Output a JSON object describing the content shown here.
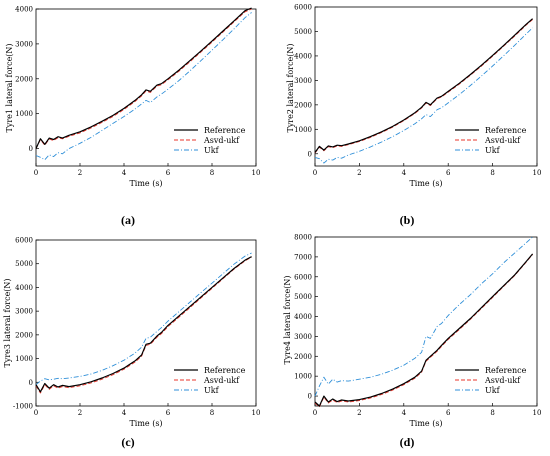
{
  "series_styles": {
    "Reference": {
      "color": "#000000",
      "dash": ""
    },
    "Asvd-ukf": {
      "color": "#e8352b",
      "dash": "4,2"
    },
    "Ukf": {
      "color": "#2f8fd8",
      "dash": "5,2,1,2"
    }
  },
  "legend": [
    "Reference",
    "Asvd-ukf",
    "Ukf"
  ],
  "chart_data": [
    {
      "type": "line",
      "caption": "(a)",
      "xlabel": "Time (s)",
      "ylabel": "Tyre1 lateral force(N)",
      "xlim": [
        0,
        10
      ],
      "ylim": [
        -500,
        4000
      ],
      "xticks": [
        "0",
        "2",
        "4",
        "6",
        "8",
        "10"
      ],
      "yticks": [
        "0",
        "1000",
        "2000",
        "3000",
        "4000"
      ],
      "legend_position": "bottom-right",
      "series": [
        {
          "name": "Reference",
          "x": [
            0,
            0.2,
            0.4,
            0.6,
            0.8,
            1.0,
            1.2,
            1.5,
            2,
            2.5,
            3,
            3.5,
            4,
            4.5,
            4.8,
            5.0,
            5.2,
            5.5,
            5.7,
            6,
            6.5,
            7,
            7.5,
            8,
            8.5,
            9,
            9.5,
            9.8
          ],
          "y": [
            0,
            280,
            120,
            300,
            260,
            340,
            300,
            380,
            480,
            620,
            780,
            950,
            1150,
            1380,
            1540,
            1680,
            1640,
            1820,
            1860,
            2000,
            2250,
            2520,
            2800,
            3080,
            3370,
            3660,
            3950,
            4030
          ]
        },
        {
          "name": "Asvd-ukf",
          "x": [
            0,
            0.2,
            0.4,
            0.6,
            0.8,
            1.0,
            1.2,
            1.5,
            2,
            2.5,
            3,
            3.5,
            4,
            4.5,
            4.8,
            5.0,
            5.2,
            5.5,
            5.7,
            6,
            6.5,
            7,
            7.5,
            8,
            8.5,
            9,
            9.5,
            9.8
          ],
          "y": [
            0,
            250,
            100,
            270,
            230,
            310,
            280,
            350,
            450,
            590,
            750,
            920,
            1120,
            1350,
            1510,
            1650,
            1610,
            1790,
            1830,
            1970,
            2220,
            2490,
            2770,
            3050,
            3340,
            3630,
            3920,
            4000
          ]
        },
        {
          "name": "Ukf",
          "x": [
            0,
            0.2,
            0.4,
            0.6,
            0.8,
            1.0,
            1.2,
            1.5,
            2,
            2.5,
            3,
            3.5,
            4,
            4.5,
            4.8,
            5.0,
            5.2,
            5.5,
            5.7,
            6,
            6.5,
            7,
            7.5,
            8,
            8.5,
            9,
            9.5,
            9.8
          ],
          "y": [
            -200,
            -250,
            -320,
            -180,
            -230,
            -120,
            -150,
            0,
            150,
            320,
            520,
            720,
            920,
            1130,
            1280,
            1380,
            1320,
            1480,
            1560,
            1700,
            1950,
            2230,
            2520,
            2820,
            3120,
            3430,
            3750,
            3900
          ]
        }
      ]
    },
    {
      "type": "line",
      "caption": "(b)",
      "xlabel": "Time (s)",
      "ylabel": "Tyre2 lateral force(N)",
      "xlim": [
        0,
        10
      ],
      "ylim": [
        -500,
        6000
      ],
      "xticks": [
        "0",
        "2",
        "4",
        "6",
        "8",
        "10"
      ],
      "yticks": [
        "0",
        "1000",
        "2000",
        "3000",
        "4000",
        "5000",
        "6000"
      ],
      "legend_position": "bottom-right",
      "series": [
        {
          "name": "Reference",
          "x": [
            0,
            0.2,
            0.4,
            0.6,
            0.8,
            1.0,
            1.2,
            1.5,
            2,
            2.5,
            3,
            3.5,
            4,
            4.5,
            4.8,
            5.0,
            5.2,
            5.5,
            5.7,
            6,
            6.5,
            7,
            7.5,
            8,
            8.5,
            9,
            9.5,
            9.8
          ],
          "y": [
            50,
            300,
            150,
            320,
            280,
            350,
            330,
            400,
            530,
            700,
            900,
            1120,
            1380,
            1680,
            1900,
            2100,
            2000,
            2280,
            2350,
            2550,
            2880,
            3240,
            3620,
            4020,
            4430,
            4850,
            5280,
            5520
          ]
        },
        {
          "name": "Asvd-ukf",
          "x": [
            0,
            0.2,
            0.4,
            0.6,
            0.8,
            1.0,
            1.2,
            1.5,
            2,
            2.5,
            3,
            3.5,
            4,
            4.5,
            4.8,
            5.0,
            5.2,
            5.5,
            5.7,
            6,
            6.5,
            7,
            7.5,
            8,
            8.5,
            9,
            9.5,
            9.8
          ],
          "y": [
            30,
            270,
            120,
            290,
            250,
            320,
            300,
            370,
            500,
            670,
            870,
            1090,
            1350,
            1650,
            1870,
            2070,
            1970,
            2250,
            2320,
            2520,
            2850,
            3210,
            3590,
            3990,
            4400,
            4820,
            5250,
            5490
          ]
        },
        {
          "name": "Ukf",
          "x": [
            0,
            0.2,
            0.4,
            0.6,
            0.8,
            1.0,
            1.2,
            1.5,
            2,
            2.5,
            3,
            3.5,
            4,
            4.5,
            4.8,
            5.0,
            5.2,
            5.5,
            5.7,
            6,
            6.5,
            7,
            7.5,
            8,
            8.5,
            9,
            9.5,
            9.8
          ],
          "y": [
            -150,
            -200,
            -380,
            -220,
            -260,
            -150,
            -180,
            -50,
            100,
            280,
            480,
            700,
            950,
            1230,
            1430,
            1600,
            1520,
            1800,
            1880,
            2080,
            2420,
            2790,
            3180,
            3590,
            4010,
            4440,
            4890,
            5150
          ]
        }
      ]
    },
    {
      "type": "line",
      "caption": "(c)",
      "xlabel": "Time (s)",
      "ylabel": "Tyre3 lateral force(N)",
      "xlim": [
        0,
        10
      ],
      "ylim": [
        -1000,
        6000
      ],
      "xticks": [
        "0",
        "2",
        "4",
        "6",
        "8",
        "10"
      ],
      "yticks": [
        "-1000",
        "0",
        "1000",
        "2000",
        "3000",
        "4000",
        "5000",
        "6000"
      ],
      "legend_position": "bottom-right",
      "series": [
        {
          "name": "Reference",
          "x": [
            0,
            0.2,
            0.4,
            0.6,
            0.8,
            1.0,
            1.2,
            1.5,
            2,
            2.5,
            3,
            3.5,
            4,
            4.5,
            4.8,
            5.0,
            5.2,
            5.5,
            5.7,
            6,
            6.5,
            7,
            7.5,
            8,
            8.5,
            9,
            9.5,
            9.8
          ],
          "y": [
            -100,
            -400,
            -50,
            -250,
            -100,
            -200,
            -130,
            -180,
            -100,
            20,
            180,
            370,
            600,
            900,
            1150,
            1600,
            1650,
            1950,
            2100,
            2400,
            2800,
            3200,
            3600,
            4000,
            4400,
            4800,
            5150,
            5300
          ]
        },
        {
          "name": "Asvd-ukf",
          "x": [
            0,
            0.2,
            0.4,
            0.6,
            0.8,
            1.0,
            1.2,
            1.5,
            2,
            2.5,
            3,
            3.5,
            4,
            4.5,
            4.8,
            5.0,
            5.2,
            5.5,
            5.7,
            6,
            6.5,
            7,
            7.5,
            8,
            8.5,
            9,
            9.5,
            9.8
          ],
          "y": [
            -150,
            -450,
            -100,
            -300,
            -150,
            -250,
            -180,
            -230,
            -150,
            -30,
            130,
            320,
            550,
            850,
            1100,
            1550,
            1600,
            1900,
            2050,
            2350,
            2750,
            3150,
            3560,
            3960,
            4370,
            4770,
            5120,
            5280
          ]
        },
        {
          "name": "Ukf",
          "x": [
            0,
            0.2,
            0.4,
            0.6,
            0.8,
            1.0,
            1.2,
            1.5,
            2,
            2.5,
            3,
            3.5,
            4,
            4.5,
            4.8,
            5.0,
            5.2,
            5.5,
            5.7,
            6,
            6.5,
            7,
            7.5,
            8,
            8.5,
            9,
            9.5,
            9.8
          ],
          "y": [
            -100,
            50,
            150,
            100,
            130,
            170,
            150,
            180,
            250,
            350,
            500,
            700,
            930,
            1230,
            1480,
            1850,
            1900,
            2150,
            2300,
            2580,
            2980,
            3380,
            3780,
            4180,
            4580,
            4980,
            5320,
            5450
          ]
        }
      ]
    },
    {
      "type": "line",
      "caption": "(d)",
      "xlabel": "Time (s)",
      "ylabel": "Tyre4 lateral force(N)",
      "xlim": [
        0,
        10
      ],
      "ylim": [
        -500,
        8000
      ],
      "xticks": [
        "0",
        "2",
        "4",
        "6",
        "8",
        "10"
      ],
      "yticks": [
        "0",
        "1000",
        "2000",
        "3000",
        "4000",
        "5000",
        "6000",
        "7000",
        "8000"
      ],
      "legend_position": "bottom-right",
      "series": [
        {
          "name": "Reference",
          "x": [
            0,
            0.2,
            0.4,
            0.6,
            0.8,
            1.0,
            1.2,
            1.5,
            2,
            2.5,
            3,
            3.5,
            4,
            4.5,
            4.8,
            5.0,
            5.2,
            5.5,
            5.7,
            6,
            6.5,
            7,
            7.5,
            8,
            8.5,
            9,
            9.5,
            9.8
          ],
          "y": [
            -300,
            -500,
            0,
            -300,
            -150,
            -280,
            -200,
            -250,
            -180,
            -50,
            130,
            350,
            620,
            950,
            1250,
            1800,
            2000,
            2300,
            2550,
            2900,
            3400,
            3900,
            4450,
            5000,
            5550,
            6100,
            6750,
            7150
          ]
        },
        {
          "name": "Asvd-ukf",
          "x": [
            0,
            0.2,
            0.4,
            0.6,
            0.8,
            1.0,
            1.2,
            1.5,
            2,
            2.5,
            3,
            3.5,
            4,
            4.5,
            4.8,
            5.0,
            5.2,
            5.5,
            5.7,
            6,
            6.5,
            7,
            7.5,
            8,
            8.5,
            9,
            9.5,
            9.8
          ],
          "y": [
            -350,
            -550,
            -50,
            -350,
            -200,
            -330,
            -250,
            -300,
            -230,
            -100,
            80,
            300,
            570,
            900,
            1200,
            1750,
            1950,
            2250,
            2500,
            2850,
            3350,
            3860,
            4410,
            4960,
            5520,
            6070,
            6720,
            7120
          ]
        },
        {
          "name": "Ukf",
          "x": [
            0,
            0.2,
            0.4,
            0.6,
            0.8,
            1.0,
            1.2,
            1.5,
            2,
            2.5,
            3,
            3.5,
            4,
            4.5,
            4.8,
            5.0,
            5.2,
            5.5,
            5.7,
            6,
            6.5,
            7,
            7.5,
            8,
            8.5,
            9,
            9.5,
            9.8
          ],
          "y": [
            0,
            500,
            950,
            600,
            850,
            700,
            780,
            750,
            850,
            950,
            1100,
            1300,
            1550,
            1900,
            2200,
            3000,
            2900,
            3500,
            3650,
            4050,
            4600,
            5100,
            5650,
            6150,
            6700,
            7200,
            7700,
            8000
          ]
        }
      ]
    }
  ]
}
